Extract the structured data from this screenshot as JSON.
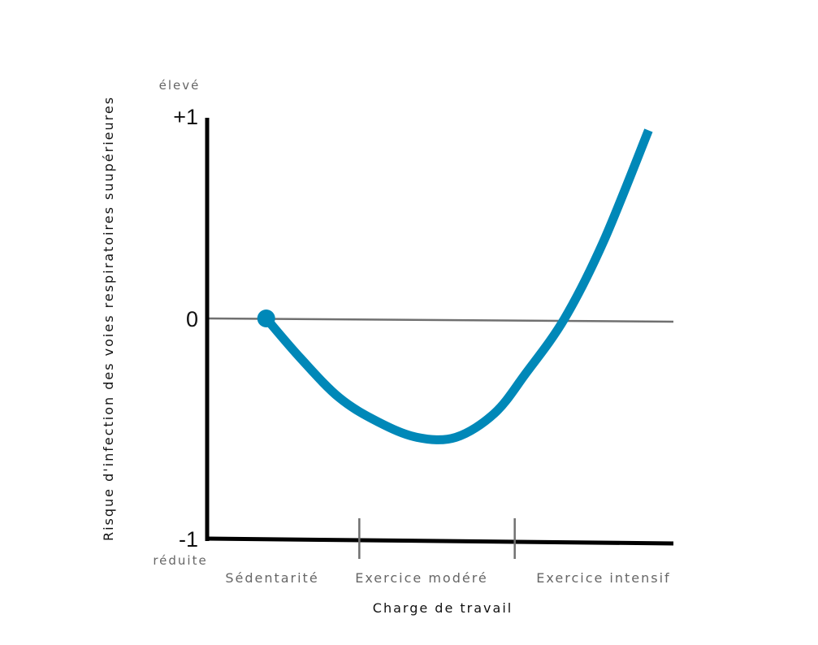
{
  "chart_data": {
    "type": "line",
    "title": "",
    "xlabel": "Charge de travail",
    "ylabel": "Risque d'infection des voies respiratoires suupérieures",
    "ylim": [
      -1,
      1
    ],
    "y_ticks": [
      {
        "value": 1,
        "label": "+1"
      },
      {
        "value": 0,
        "label": "0"
      },
      {
        "value": -1,
        "label": "-1"
      }
    ],
    "y_level_labels": {
      "high": "élevé",
      "low": "réduite"
    },
    "categories": [
      "Sédentarité",
      "Exercice modéré",
      "Exercice intensif"
    ],
    "x_range": [
      0,
      3
    ],
    "x_dividers": [
      1,
      2
    ],
    "reference_line": {
      "y": 0
    },
    "series": [
      {
        "name": "Risque d'infection",
        "color": "#0088b8",
        "start_marker": true,
        "points": [
          {
            "x": 0.38,
            "y": 0.0
          },
          {
            "x": 0.6,
            "y": -0.18
          },
          {
            "x": 0.85,
            "y": -0.36
          },
          {
            "x": 1.1,
            "y": -0.47
          },
          {
            "x": 1.35,
            "y": -0.54
          },
          {
            "x": 1.6,
            "y": -0.54
          },
          {
            "x": 1.85,
            "y": -0.43
          },
          {
            "x": 2.05,
            "y": -0.25
          },
          {
            "x": 2.3,
            "y": 0.0
          },
          {
            "x": 2.55,
            "y": 0.38
          },
          {
            "x": 2.84,
            "y": 0.93
          }
        ]
      }
    ]
  },
  "colors": {
    "axis": "#000000",
    "reference": "#707070",
    "divider": "#707070",
    "series": "#0088b8"
  }
}
